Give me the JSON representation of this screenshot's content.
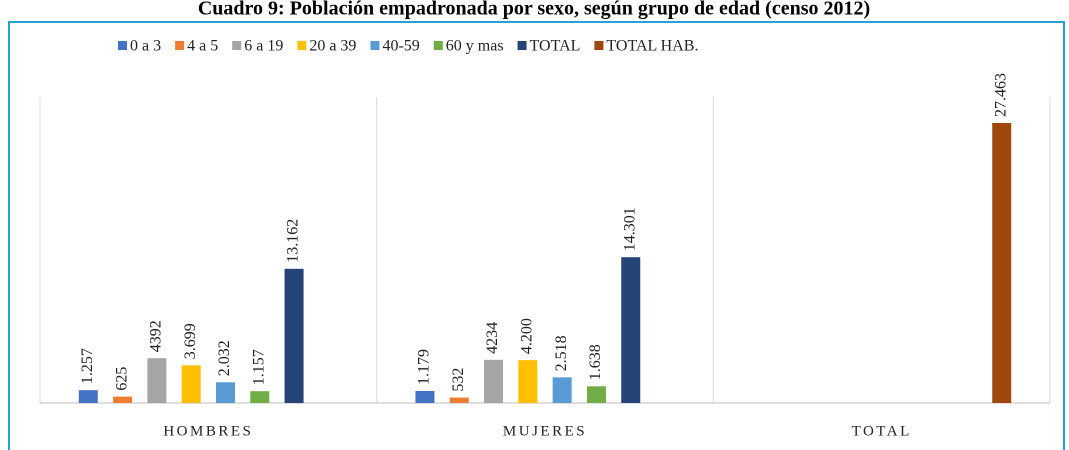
{
  "chart_data": {
    "type": "bar",
    "title": "Cuadro 9: Población empadronada por sexo, según grupo de edad (censo 2012)",
    "categories": [
      "HOMBRES",
      "MUJERES",
      "TOTAL"
    ],
    "series": [
      {
        "name": "0 a 3",
        "color": "#4472c4",
        "values": [
          1257,
          1179,
          null
        ],
        "value_labels": [
          "1.257",
          "1.179",
          null
        ]
      },
      {
        "name": "4 a 5",
        "color": "#ed7d31",
        "values": [
          625,
          532,
          null
        ]
      },
      {
        "name": "6 a 19",
        "color": "#a5a5a5",
        "values": [
          4392,
          4234,
          null
        ]
      },
      {
        "name": "20 a 39",
        "color": "#ffc000",
        "values": [
          3699,
          4200,
          null
        ],
        "value_labels": [
          "3.699",
          "4.200",
          null
        ]
      },
      {
        "name": "40-59",
        "color": "#5b9bd5",
        "values": [
          2032,
          2518,
          null
        ],
        "value_labels": [
          "2.032",
          "2.518",
          null
        ]
      },
      {
        "name": "60 y mas",
        "color": "#70ad47",
        "values": [
          1157,
          1638,
          null
        ],
        "value_labels": [
          "1.157",
          "1.638",
          null
        ]
      },
      {
        "name": "TOTAL",
        "color": "#264478",
        "values": [
          13162,
          14301,
          null
        ],
        "value_labels": [
          "13.162",
          "14.301",
          null
        ]
      },
      {
        "name": "TOTAL HAB.",
        "color": "#9e480e",
        "values": [
          null,
          null,
          27463
        ],
        "value_labels": [
          null,
          null,
          "27.463"
        ]
      }
    ]
  }
}
